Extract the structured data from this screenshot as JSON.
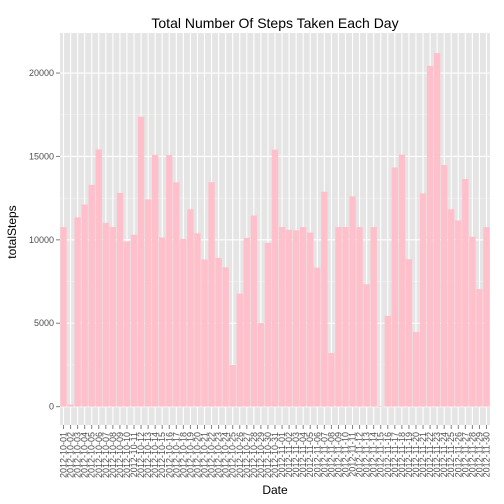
{
  "chart_data": {
    "type": "bar",
    "title": "Total Number Of Steps Taken Each Day",
    "xlabel": "Date",
    "ylabel": "totalSteps",
    "ylim": [
      -1100,
      22400
    ],
    "yticks": [
      0,
      5000,
      10000,
      15000,
      20000
    ],
    "ytick_labels": [
      "0",
      "5000",
      "10000",
      "15000",
      "20000"
    ],
    "categories": [
      "2012-10-01",
      "2012-10-02",
      "2012-10-03",
      "2012-10-04",
      "2012-10-05",
      "2012-10-06",
      "2012-10-07",
      "2012-10-08",
      "2012-10-09",
      "2012-10-10",
      "2012-10-11",
      "2012-10-12",
      "2012-10-13",
      "2012-10-14",
      "2012-10-15",
      "2012-10-16",
      "2012-10-17",
      "2012-10-18",
      "2012-10-19",
      "2012-10-20",
      "2012-10-21",
      "2012-10-22",
      "2012-10-23",
      "2012-10-24",
      "2012-10-25",
      "2012-10-26",
      "2012-10-27",
      "2012-10-28",
      "2012-10-29",
      "2012-10-30",
      "2012-10-31",
      "2012-11-01",
      "2012-11-02",
      "2012-11-03",
      "2012-11-04",
      "2012-11-05",
      "2012-11-06",
      "2012-11-07",
      "2012-11-08",
      "2012-11-09",
      "2012-11-10",
      "2012-11-11",
      "2012-11-12",
      "2012-11-13",
      "2012-11-14",
      "2012-11-15",
      "2012-11-16",
      "2012-11-17",
      "2012-11-18",
      "2012-11-19",
      "2012-11-20",
      "2012-11-21",
      "2012-11-22",
      "2012-11-23",
      "2012-11-24",
      "2012-11-25",
      "2012-11-26",
      "2012-11-27",
      "2012-11-28",
      "2012-11-29",
      "2012-11-30"
    ],
    "values": [
      10766,
      126,
      11352,
      12116,
      13294,
      15420,
      11015,
      10766,
      12811,
      9900,
      10304,
      17382,
      12426,
      15098,
      10139,
      15084,
      13452,
      10056,
      11829,
      10395,
      8821,
      13460,
      8918,
      8355,
      2492,
      6778,
      10119,
      11458,
      5018,
      9819,
      15414,
      10766,
      10600,
      10571,
      10766,
      10439,
      8334,
      12883,
      3219,
      10766,
      10766,
      12608,
      10765,
      7336,
      10766,
      41,
      5441,
      14339,
      15110,
      8841,
      4472,
      12787,
      20427,
      21194,
      14478,
      11834,
      11162,
      13646,
      10183,
      7047,
      10766
    ],
    "bar_color": "#FFC0CB",
    "panel_color": "#E5E5E5",
    "grid": true
  }
}
